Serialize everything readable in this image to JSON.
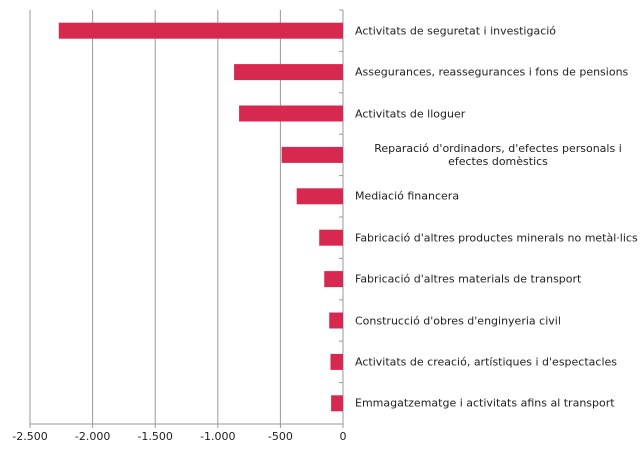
{
  "chart_data": {
    "type": "hbar",
    "categories": [
      "Activitats de seguretat i investigació",
      "Assegurances, reassegurances i fons de pensions",
      "Activitats de lloguer",
      "Reparació d'ordinadors, d'efectes personals i efectes domèstics",
      "Mediació financera",
      "Fabricació d'altres productes minerals no metàl·lics",
      "Fabricació d'altres materials de transport",
      "Construcció d'obres d'enginyeria civil",
      "Activitats de creació, artístiques i d'espectacles",
      "Emmagatzematge i activitats afins al transport"
    ],
    "values": [
      -2270,
      -870,
      -830,
      -490,
      -370,
      -190,
      -150,
      -110,
      -100,
      -95
    ],
    "color": "#d7294f",
    "xlim": [
      -2500,
      0
    ],
    "xticks": [
      {
        "value": -2500,
        "label": "-2.500"
      },
      {
        "value": -2000,
        "label": "-2.000"
      },
      {
        "value": -1500,
        "label": "-1.500"
      },
      {
        "value": -1000,
        "label": "-1.000"
      },
      {
        "value": -500,
        "label": "-500"
      },
      0
    ],
    "grid": true
  }
}
